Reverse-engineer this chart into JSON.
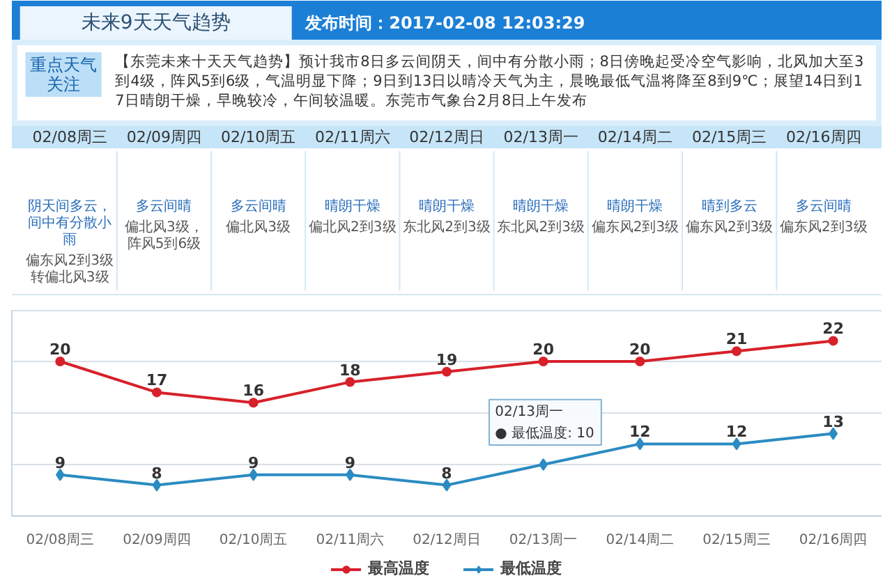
{
  "chart_data": {
    "type": "line",
    "title": "未来9天天气趋势",
    "subtitle": "发布时间：2017-02-08 12:03:29",
    "annotations": [
      "重点天气关注",
      "【东莞未来十天天气趋势】预计我市8日多云间阴天，间中有分散小雨；8日傍晚起受冷空气影响，北风加大至3到4级，阵风5到6级，气温明显下降；9日到13日以晴冷天气为主，晨晚最低气温将降至8到9℃；展望14日到17日晴朗干燥，早晚较冷，午间较温暖。东莞市气象台2月8日上午发布",
      "阴天间多云，间中有分散小雨",
      "偏东风2到3级转偏北风3级",
      "多云间晴",
      "偏北风3级，阵风5到6级",
      "多云间晴",
      "偏北风3级",
      "晴朗干燥",
      "偏北风2到3级",
      "晴朗干燥",
      "东北风2到3级",
      "晴朗干燥",
      "东北风2到3级",
      "晴朗干燥",
      "偏东风2到3级",
      "晴到多云",
      "偏东风2到3级",
      "多云间晴",
      "偏东风2到3级",
      {
        "text": "02/13周一\n● 最低温度: 10",
        "x": "02/13周一",
        "y": 10
      }
    ],
    "categories": [
      "02/08周三",
      "02/09周四",
      "02/10周五",
      "02/11周六",
      "02/12周日",
      "02/13周一",
      "02/14周二",
      "02/15周三",
      "02/16周四"
    ],
    "series": [
      {
        "name": "最高温度",
        "color": "#d7212a",
        "marker": "circle",
        "values": [
          20,
          17,
          16,
          18,
          19,
          20,
          20,
          21,
          22
        ],
        "value_labels": [
          "20",
          "17",
          "16",
          "18",
          "19",
          "20",
          "20",
          "21",
          "22"
        ]
      },
      {
        "name": "最低温度",
        "color": "#2b8bc2",
        "marker": "diamond",
        "values": [
          9,
          8,
          9,
          9,
          8,
          10,
          12,
          12,
          13
        ],
        "value_labels": [
          "9",
          "8",
          "9",
          "9",
          "8",
          null,
          "12",
          "12",
          "13"
        ]
      }
    ],
    "ylim": [
      5,
      25
    ],
    "yticks": [
      {
        "value": 10,
        "label": null
      },
      {
        "value": 15,
        "label": null
      },
      {
        "value": 20,
        "label": null
      },
      {
        "value": 25,
        "label": null
      }
    ],
    "tick_labels": "x",
    "grid": "y",
    "legend": "bottom"
  }
}
